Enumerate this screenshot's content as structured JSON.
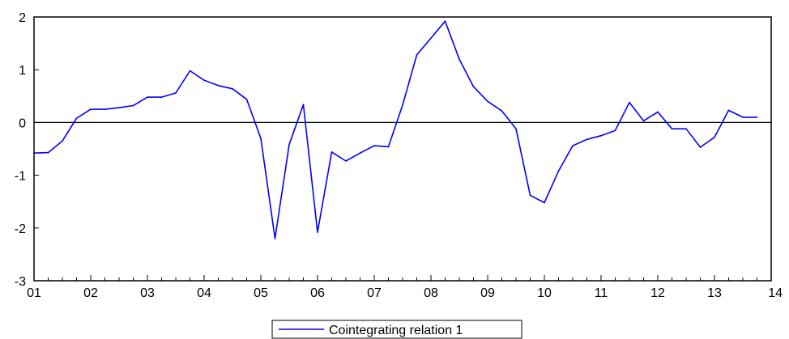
{
  "chart_data": {
    "type": "line",
    "title": "",
    "xlabel": "",
    "ylabel": "",
    "ylim": [
      -3,
      2
    ],
    "yticks": [
      -3,
      -2,
      -1,
      0,
      1,
      2
    ],
    "ytick_labels": [
      "-3",
      "-2",
      "-1",
      "0",
      "1",
      "2"
    ],
    "xlim": [
      2001,
      2014
    ],
    "xticks": [
      2001,
      2002,
      2003,
      2004,
      2005,
      2006,
      2007,
      2008,
      2009,
      2010,
      2011,
      2012,
      2013,
      2014
    ],
    "xtick_labels": [
      "01",
      "02",
      "03",
      "04",
      "05",
      "06",
      "07",
      "08",
      "09",
      "10",
      "11",
      "12",
      "13",
      "14"
    ],
    "zero_line": true,
    "grid": false,
    "legend_position": "bottom-center",
    "series": [
      {
        "name": "Cointegrating relation 1",
        "color": "#0000ff",
        "x": [
          2001.0,
          2001.25,
          2001.5,
          2001.75,
          2002.0,
          2002.25,
          2002.5,
          2002.75,
          2003.0,
          2003.25,
          2003.5,
          2003.75,
          2004.0,
          2004.25,
          2004.5,
          2004.75,
          2005.0,
          2005.25,
          2005.5,
          2005.75,
          2006.0,
          2006.25,
          2006.5,
          2006.75,
          2007.0,
          2007.25,
          2007.5,
          2007.75,
          2008.0,
          2008.25,
          2008.5,
          2008.75,
          2009.0,
          2009.25,
          2009.5,
          2009.75,
          2010.0,
          2010.25,
          2010.5,
          2010.75,
          2011.0,
          2011.25,
          2011.5,
          2011.75,
          2012.0,
          2012.25,
          2012.5,
          2012.75,
          2013.0,
          2013.25,
          2013.5,
          2013.75
        ],
        "values": [
          -0.58,
          -0.57,
          -0.35,
          0.08,
          0.25,
          0.25,
          0.28,
          0.32,
          0.48,
          0.48,
          0.56,
          0.98,
          0.8,
          0.7,
          0.64,
          0.44,
          -0.3,
          -2.2,
          -0.42,
          0.34,
          -2.08,
          -0.56,
          -0.73,
          -0.58,
          -0.44,
          -0.46,
          0.33,
          1.28,
          1.6,
          1.92,
          1.2,
          0.68,
          0.4,
          0.22,
          -0.12,
          -1.38,
          -1.52,
          -0.92,
          -0.44,
          -0.32,
          -0.25,
          -0.15,
          0.38,
          0.03,
          0.2,
          -0.12,
          -0.12,
          -0.47,
          -0.28,
          0.23,
          0.1,
          0.1
        ]
      }
    ]
  }
}
